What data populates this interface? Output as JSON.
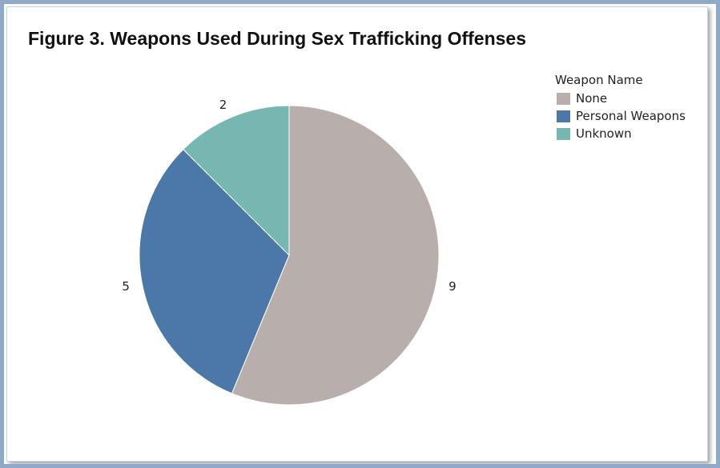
{
  "chart_data": {
    "type": "pie",
    "title": "Figure 3. Weapons Used During Sex Trafficking Offenses",
    "legend_title": "Weapon Name",
    "legend_position": "top-right",
    "slices": [
      {
        "name": "None",
        "value": 9,
        "label": "9",
        "color": "#b8aeac"
      },
      {
        "name": "Personal Weapons",
        "value": 5,
        "label": "5",
        "color": "#4b78a8"
      },
      {
        "name": "Unknown",
        "value": 2,
        "label": "2",
        "color": "#76b7b1"
      }
    ]
  }
}
